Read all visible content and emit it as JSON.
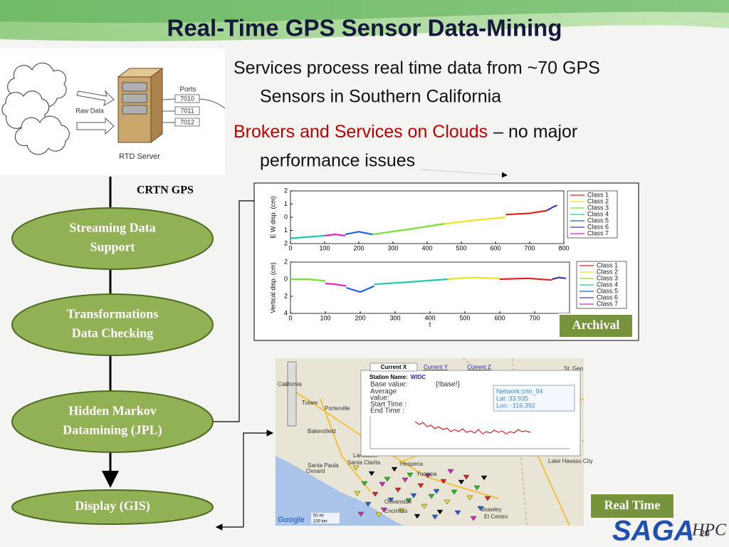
{
  "title": "Real-Time GPS Sensor Data-Mining",
  "bullets": [
    {
      "line1": "Services process real time data from ~70 GPS",
      "line2": "Sensors in Southern California"
    },
    {
      "red": "Brokers and Services on Clouds",
      "rest": "– no major",
      "line2": "performance issues"
    }
  ],
  "server_diagram": {
    "raw_data": "Raw Data",
    "ports_label": "Ports",
    "ports": [
      "7010",
      "7011",
      "7012"
    ],
    "server": "RTD Server"
  },
  "flow": {
    "source": "CRTN GPS",
    "nodes": [
      [
        "Streaming Data",
        "Support"
      ],
      [
        "Transformations",
        "Data Checking"
      ],
      [
        "Hidden Markov",
        "Datamining (JPL)"
      ],
      [
        "Display (GIS)"
      ]
    ]
  },
  "labels": {
    "archival": "Archival",
    "real_time": "Real Time"
  },
  "chart_data": [
    {
      "type": "line",
      "ylabel": "E  W disp. (cm)",
      "xlim": [
        0,
        800
      ],
      "ylim": [
        -2,
        2
      ],
      "xticks": [
        0,
        100,
        200,
        300,
        400,
        500,
        600,
        700,
        800
      ],
      "yticks": [
        2,
        1,
        0,
        {
          "value": -1,
          "label": "1"
        },
        {
          "value": -2,
          "label": "2"
        }
      ],
      "series": [
        {
          "name": "Class 1",
          "color": "#e8201c",
          "x": [
            630,
            700,
            750
          ],
          "values": [
            0.2,
            0.3,
            0.5
          ]
        },
        {
          "name": "Class 2",
          "color": "#f0e020",
          "x": [
            450,
            550,
            630
          ],
          "values": [
            -0.5,
            -0.2,
            0
          ]
        },
        {
          "name": "Class 3",
          "color": "#78e030",
          "x": [
            240,
            350,
            450
          ],
          "values": [
            -1.3,
            -0.9,
            -0.5
          ]
        },
        {
          "name": "Class 4",
          "color": "#20c8b0",
          "x": [
            0,
            50,
            100
          ],
          "values": [
            -1.6,
            -1.5,
            -1.4
          ]
        },
        {
          "name": "Class 5",
          "color": "#2060e0",
          "x": [
            160,
            200,
            240
          ],
          "values": [
            -1.3,
            -1.1,
            -1.3
          ]
        },
        {
          "name": "Class 6",
          "color": "#5030c0",
          "x": [
            750,
            770,
            780
          ],
          "values": [
            0.5,
            0.8,
            0.9
          ]
        },
        {
          "name": "Class 7",
          "color": "#e020c0",
          "x": [
            100,
            130,
            160
          ],
          "values": [
            -1.4,
            -1.3,
            -1.4
          ]
        }
      ]
    },
    {
      "type": "line",
      "ylabel": "Vertical disp. (cm)",
      "xlabel": "t",
      "xlim": [
        0,
        800
      ],
      "ylim": [
        -4,
        2
      ],
      "xticks": [
        0,
        100,
        200,
        300,
        400,
        500,
        600,
        700
      ],
      "yticks": [
        2,
        0,
        {
          "value": -2,
          "label": "2"
        },
        {
          "value": -4,
          "label": "4"
        }
      ],
      "series": [
        {
          "name": "Class 1",
          "color": "#e8201c",
          "x": [
            600,
            680,
            750
          ],
          "values": [
            0,
            0.1,
            -0.1
          ]
        },
        {
          "name": "Class 2",
          "color": "#f0e020",
          "x": [
            450,
            520,
            600
          ],
          "values": [
            0,
            0.2,
            0.1
          ]
        },
        {
          "name": "Class 3",
          "color": "#78e030",
          "x": [
            0,
            50,
            100
          ],
          "values": [
            0,
            0,
            -0.2
          ]
        },
        {
          "name": "Class 4",
          "color": "#20c8b0",
          "x": [
            240,
            350,
            450
          ],
          "values": [
            -0.6,
            -0.3,
            0
          ]
        },
        {
          "name": "Class 5",
          "color": "#2060e0",
          "x": [
            160,
            200,
            240
          ],
          "values": [
            -1,
            -1.5,
            -0.8
          ]
        },
        {
          "name": "Class 6",
          "color": "#5030c0",
          "x": [
            750,
            770,
            790
          ],
          "values": [
            0,
            0.2,
            0.1
          ]
        },
        {
          "name": "Class 7",
          "color": "#e020c0",
          "x": [
            100,
            130,
            160
          ],
          "values": [
            -0.5,
            -0.6,
            -0.8
          ]
        }
      ]
    }
  ],
  "map": {
    "tabs": [
      "Current X",
      "Current Y",
      "Current Z"
    ],
    "popup": {
      "station_label": "Station Name:",
      "station": "WIDC",
      "fields": [
        "Base value:",
        "Average",
        "value:",
        "Start Time :",
        "End Time :"
      ],
      "base": "{!base!}",
      "info": [
        "Network:crtn_04",
        "Lat: 33.935",
        "Lon: -116.392"
      ]
    },
    "places": [
      "California",
      "Tulare",
      "Porterville",
      "Bakersfield",
      "Lancaster",
      "Santa Clarita",
      "Santa Paula",
      "Oxnard",
      "Hesperia",
      "Yucaipa",
      "Oceanside",
      "Encinitas",
      "El Centro",
      "Brawley",
      "Lake Havasu City",
      "St. Geo"
    ],
    "scale": [
      "50 mi",
      "100 km"
    ],
    "google": "Google"
  },
  "logo": {
    "name": "SAGA",
    "sub": "HPC"
  },
  "page_number": "20"
}
